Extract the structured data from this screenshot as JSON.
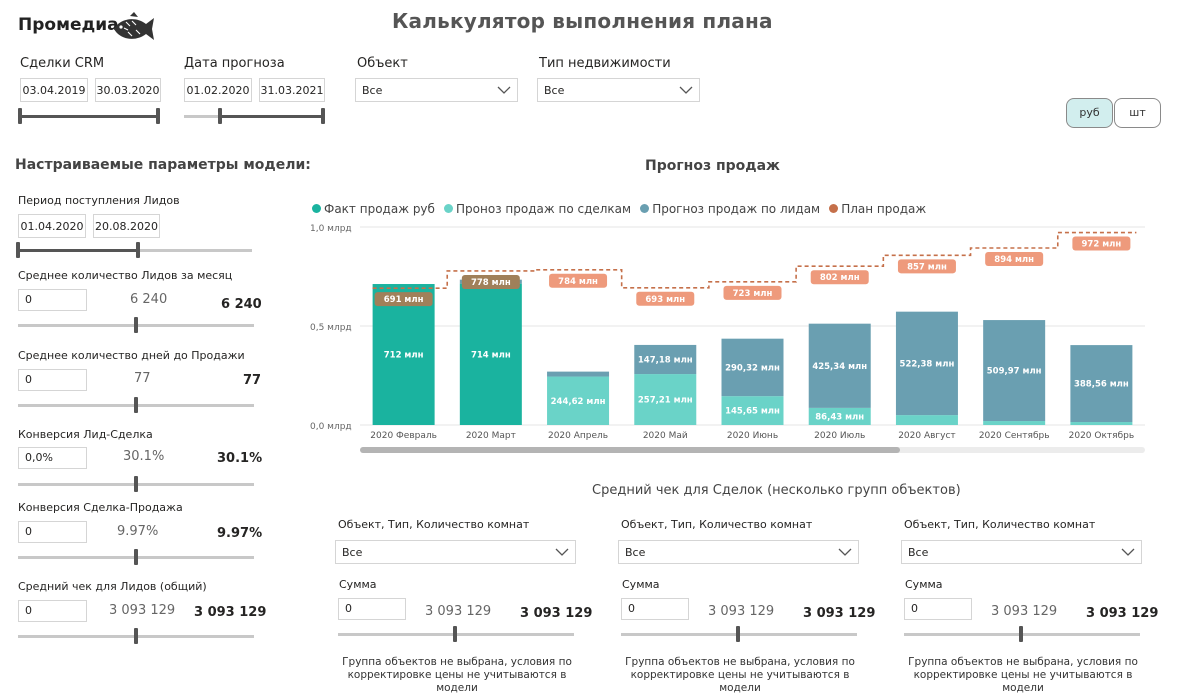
{
  "header": {
    "logo_text": "Промедиа",
    "title": "Калькулятор выполнения плана"
  },
  "filters": {
    "deals_crm": {
      "label": "Сделки CRM",
      "from": "03.04.2019",
      "to": "30.03.2020"
    },
    "forecast_date": {
      "label": "Дата прогноза",
      "from": "01.02.2020",
      "to": "31.03.2021"
    },
    "object": {
      "label": "Объект",
      "value": "Все"
    },
    "property_type": {
      "label": "Тип недвижимости",
      "value": "Все"
    }
  },
  "toggle": {
    "rub_label": "руб",
    "pcs_label": "шт",
    "selected": "руб"
  },
  "model_params": {
    "heading": "Настраиваемые параметры модели:",
    "lead_period": {
      "label": "Период поступления Лидов",
      "from": "01.04.2020",
      "to": "20.08.2020"
    },
    "params": [
      {
        "label": "Среднее количество Лидов за месяц",
        "input": "0",
        "mid": "6 240",
        "value": "6 240"
      },
      {
        "label": "Среднее количество дней до Продажи",
        "input": "0",
        "mid": "77",
        "value": "77"
      },
      {
        "label": "Конверсия Лид-Сделка",
        "input": "0,0%",
        "mid": "30.1%",
        "value": "30.1%"
      },
      {
        "label": "Конверсия Сделка-Продажа",
        "input": "0",
        "mid": "9.97%",
        "value": "9.97%"
      },
      {
        "label": "Средний чек для Лидов (общий)",
        "input": "0",
        "mid": "3 093 129",
        "value": "3 093 129"
      }
    ]
  },
  "chart_title": "Прогноз продаж",
  "chart_data": {
    "type": "bar",
    "categories": [
      "2020 Февраль",
      "2020 Март",
      "2020 Апрель",
      "2020 Май",
      "2020 Июнь",
      "2020 Июль",
      "2020 Август",
      "2020 Сентябрь",
      "2020 Октябрь"
    ],
    "ylim": [
      0,
      1.0
    ],
    "y_ticks": [
      {
        "value": 0,
        "label": "0,0 млрд"
      },
      {
        "value": 0.5,
        "label": "0,5 млрд"
      },
      {
        "value": 1.0,
        "label": "1,0 млрд"
      }
    ],
    "legend_position": "top-left",
    "series": [
      {
        "name": "Факт продаж руб",
        "color": "#1ab39f",
        "stack": "main",
        "values": [
          0.712,
          0.714,
          0,
          0,
          0,
          0,
          0,
          0,
          0
        ],
        "labels": [
          "712 млн",
          "714 млн",
          "",
          "",
          "",
          "",
          "",
          "",
          ""
        ]
      },
      {
        "name": "Пронозпродаж по сделкам",
        "display_name": "Проноз продаж по сделкам",
        "color": "#6ad3c8",
        "stack": "main",
        "values": [
          0,
          0,
          0.24462,
          0.25721,
          0.14565,
          0.08643,
          0.05,
          0.02,
          0.015
        ],
        "labels": [
          "",
          "",
          "244,62 млн",
          "257,21 млн",
          "145,65 млн",
          "86,43 млн",
          "",
          "",
          ""
        ]
      },
      {
        "name": "Прогноз продаж по лидам",
        "color": "#6a9fb1",
        "stack": "main",
        "values": [
          0,
          0.02,
          0.025,
          0.14718,
          0.29032,
          0.42534,
          0.52238,
          0.50997,
          0.38856
        ],
        "labels": [
          "",
          "",
          "",
          "147,18 млн",
          "290,32 млн",
          "425,34 млн",
          "522,38 млн",
          "509,97 млн",
          "388,56 млн"
        ]
      },
      {
        "name": "План продаж",
        "color": "#c5704a",
        "type": "step-line",
        "values": [
          0.691,
          0.778,
          0.784,
          0.693,
          0.723,
          0.802,
          0.857,
          0.894,
          0.972
        ],
        "labels": [
          "691 млн",
          "778 млн",
          "784 млн",
          "693 млн",
          "723 млн",
          "802 млн",
          "857 млн",
          "894 млн",
          "972 млн"
        ]
      }
    ]
  },
  "avg_check": {
    "title": "Средний чек для Сделок (несколько групп объектов)",
    "groups": [
      {
        "filter_label": "Объект, Тип, Количество комнат",
        "filter_value": "Все",
        "sum_label": "Сумма",
        "input": "0",
        "mid": "3 093 129",
        "value": "3 093 129",
        "note": "Группа объектов не выбрана, условия по корректировке цены не учитываются в модели"
      },
      {
        "filter_label": "Объект, Тип, Количество комнат",
        "filter_value": "Все",
        "sum_label": "Сумма",
        "input": "0",
        "mid": "3 093 129",
        "value": "3 093 129",
        "note": "Группа объектов не выбрана, условия по корректировке цены не учитываются в модели"
      },
      {
        "filter_label": "Объект, Тип, Количество комнат",
        "filter_value": "Все",
        "sum_label": "Сумма",
        "input": "0",
        "mid": "3 093 129",
        "value": "3 093 129",
        "note": "Группа объектов не выбрана, условия по корректировке цены не учитываются в модели"
      }
    ]
  }
}
